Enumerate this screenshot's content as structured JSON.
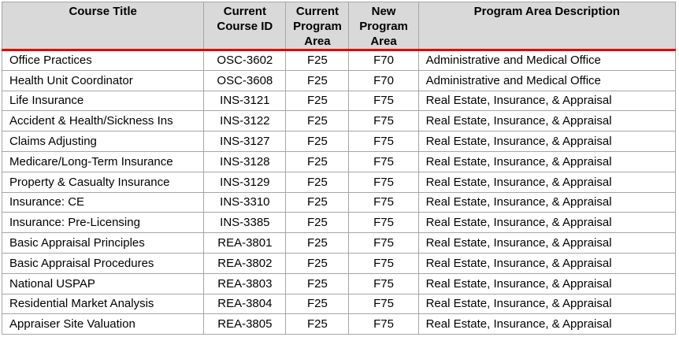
{
  "table": {
    "columns": [
      {
        "label": "Course Title"
      },
      {
        "label": "Current Course ID"
      },
      {
        "label": "Current Program Area"
      },
      {
        "label": "New Program Area"
      },
      {
        "label": "Program Area Description"
      }
    ],
    "rows": [
      [
        "Office Practices",
        "OSC-3602",
        "F25",
        "F70",
        "Administrative and Medical Office"
      ],
      [
        "Health Unit Coordinator",
        "OSC-3608",
        "F25",
        "F70",
        "Administrative and Medical Office"
      ],
      [
        "Life Insurance",
        "INS-3121",
        "F25",
        "F75",
        "Real Estate, Insurance, & Appraisal"
      ],
      [
        "Accident & Health/Sickness Ins",
        "INS-3122",
        "F25",
        "F75",
        "Real Estate, Insurance, & Appraisal"
      ],
      [
        "Claims Adjusting",
        "INS-3127",
        "F25",
        "F75",
        "Real Estate, Insurance, & Appraisal"
      ],
      [
        "Medicare/Long-Term Insurance",
        "INS-3128",
        "F25",
        "F75",
        "Real Estate, Insurance, & Appraisal"
      ],
      [
        "Property & Casualty Insurance",
        "INS-3129",
        "F25",
        "F75",
        "Real Estate, Insurance, & Appraisal"
      ],
      [
        "Insurance: CE",
        "INS-3310",
        "F25",
        "F75",
        "Real Estate, Insurance, & Appraisal"
      ],
      [
        "Insurance: Pre-Licensing",
        "INS-3385",
        "F25",
        "F75",
        "Real Estate, Insurance, & Appraisal"
      ],
      [
        "Basic Appraisal Principles",
        "REA-3801",
        "F25",
        "F75",
        "Real Estate, Insurance, & Appraisal"
      ],
      [
        "Basic Appraisal Procedures",
        "REA-3802",
        "F25",
        "F75",
        "Real Estate, Insurance, & Appraisal"
      ],
      [
        "National USPAP",
        "REA-3803",
        "F25",
        "F75",
        "Real Estate, Insurance, & Appraisal"
      ],
      [
        "Residential Market Analysis",
        "REA-3804",
        "F25",
        "F75",
        "Real Estate, Insurance, & Appraisal"
      ],
      [
        "Appraiser Site Valuation",
        "REA-3805",
        "F25",
        "F75",
        "Real Estate, Insurance, & Appraisal"
      ]
    ],
    "colors": {
      "header_background": "#d9d9d9",
      "border": "#a6a6a6",
      "accent_rule": "#e60000",
      "text": "#000000"
    }
  }
}
